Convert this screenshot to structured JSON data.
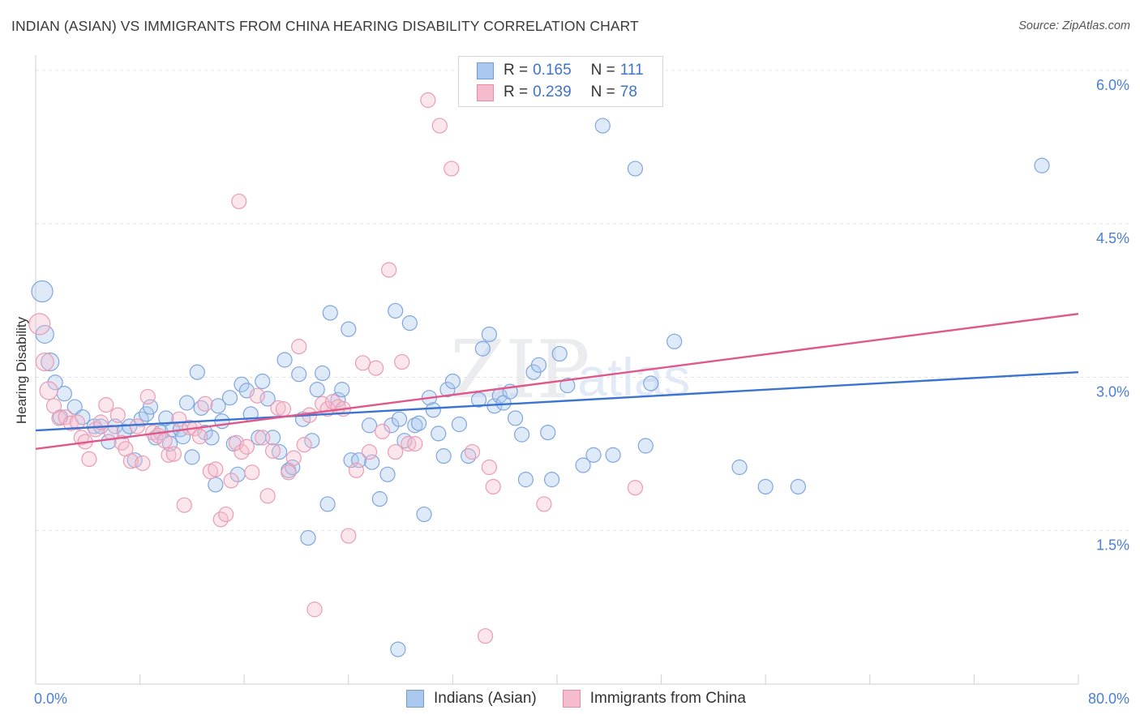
{
  "header": {
    "title": "INDIAN (ASIAN) VS IMMIGRANTS FROM CHINA HEARING DISABILITY CORRELATION CHART",
    "source_label": "Source:",
    "source_value": "ZipAtlas.com"
  },
  "watermark": {
    "zip": "ZIP",
    "atlas": "atlas"
  },
  "legend": {
    "r_key": "R =",
    "n_key": "N =",
    "series": [
      {
        "r": "0.165",
        "n": "111",
        "fill": "#aac7ee",
        "stroke": "#6f9bd8"
      },
      {
        "r": "0.239",
        "n": "78",
        "fill": "#f5bccd",
        "stroke": "#e88aa8"
      }
    ]
  },
  "bottom_legend": [
    "Indians (Asian)",
    "Immigrants from China"
  ],
  "colors": {
    "blue": "#3b73d1",
    "pink": "#e0578a",
    "axis_text": "#4a7fd4",
    "grid": "#e3e3e3"
  },
  "chart_data": {
    "type": "scatter",
    "title": "INDIAN (ASIAN) VS IMMIGRANTS FROM CHINA HEARING DISABILITY CORRELATION CHART",
    "xlabel": "",
    "ylabel": "Hearing Disability",
    "xlim": [
      0,
      80
    ],
    "ylim": [
      0,
      6.15
    ],
    "x_tick_labels": [
      "0.0%",
      "80.0%"
    ],
    "y_ticks": [
      1.5,
      3.0,
      4.5,
      6.0
    ],
    "y_tick_labels": [
      "1.5%",
      "3.0%",
      "4.5%",
      "6.0%"
    ],
    "grid": "horizontal dashed",
    "legend_position": "top-center",
    "series": [
      {
        "name": "Indians (Asian)",
        "color": "#6f9bd8",
        "trend": {
          "x": [
            0,
            80
          ],
          "y": [
            2.48,
            3.05
          ]
        },
        "points": [
          [
            0.5,
            3.84
          ],
          [
            0.7,
            3.42
          ],
          [
            1.1,
            3.15
          ],
          [
            1.5,
            2.95
          ],
          [
            2.2,
            2.84
          ],
          [
            3.0,
            2.71
          ],
          [
            3.6,
            2.61
          ],
          [
            1.9,
            2.61
          ],
          [
            4.5,
            2.52
          ],
          [
            5.0,
            2.52
          ],
          [
            5.6,
            2.37
          ],
          [
            6.1,
            2.52
          ],
          [
            6.8,
            2.47
          ],
          [
            7.2,
            2.52
          ],
          [
            7.6,
            2.19
          ],
          [
            8.1,
            2.59
          ],
          [
            8.5,
            2.64
          ],
          [
            8.8,
            2.71
          ],
          [
            9.2,
            2.41
          ],
          [
            9.6,
            2.46
          ],
          [
            10.0,
            2.6
          ],
          [
            10.5,
            2.49
          ],
          [
            10.3,
            2.35
          ],
          [
            11.1,
            2.49
          ],
          [
            11.3,
            2.42
          ],
          [
            11.6,
            2.75
          ],
          [
            12.0,
            2.22
          ],
          [
            12.4,
            3.05
          ],
          [
            12.7,
            2.7
          ],
          [
            13.0,
            2.46
          ],
          [
            13.5,
            2.41
          ],
          [
            13.8,
            1.95
          ],
          [
            14.0,
            2.72
          ],
          [
            14.3,
            2.57
          ],
          [
            14.9,
            2.8
          ],
          [
            15.2,
            2.35
          ],
          [
            15.5,
            2.05
          ],
          [
            15.8,
            2.93
          ],
          [
            16.2,
            2.87
          ],
          [
            16.5,
            2.64
          ],
          [
            17.1,
            2.41
          ],
          [
            17.4,
            2.96
          ],
          [
            17.8,
            2.79
          ],
          [
            18.2,
            2.41
          ],
          [
            18.7,
            2.27
          ],
          [
            19.1,
            3.17
          ],
          [
            19.4,
            2.09
          ],
          [
            19.7,
            2.12
          ],
          [
            20.2,
            3.03
          ],
          [
            20.5,
            2.59
          ],
          [
            20.9,
            1.43
          ],
          [
            21.2,
            2.38
          ],
          [
            21.6,
            2.88
          ],
          [
            22.0,
            3.04
          ],
          [
            22.4,
            1.76
          ],
          [
            22.6,
            3.63
          ],
          [
            23.2,
            2.78
          ],
          [
            23.5,
            2.88
          ],
          [
            24.0,
            3.47
          ],
          [
            24.2,
            2.19
          ],
          [
            24.8,
            2.19
          ],
          [
            25.6,
            2.53
          ],
          [
            25.8,
            2.17
          ],
          [
            26.4,
            1.81
          ],
          [
            27.0,
            2.05
          ],
          [
            27.3,
            2.53
          ],
          [
            27.6,
            3.65
          ],
          [
            27.9,
            2.59
          ],
          [
            28.3,
            2.38
          ],
          [
            28.7,
            3.53
          ],
          [
            29.1,
            2.53
          ],
          [
            29.4,
            2.55
          ],
          [
            29.8,
            1.66
          ],
          [
            30.2,
            2.8
          ],
          [
            30.5,
            2.68
          ],
          [
            30.9,
            2.45
          ],
          [
            31.3,
            2.23
          ],
          [
            31.6,
            2.88
          ],
          [
            32.0,
            2.96
          ],
          [
            32.5,
            2.54
          ],
          [
            33.2,
            2.23
          ],
          [
            34.0,
            2.78
          ],
          [
            34.3,
            3.28
          ],
          [
            34.8,
            3.42
          ],
          [
            35.2,
            2.72
          ],
          [
            35.6,
            2.82
          ],
          [
            35.9,
            2.75
          ],
          [
            36.4,
            2.86
          ],
          [
            36.8,
            2.6
          ],
          [
            37.3,
            2.44
          ],
          [
            37.6,
            2.0
          ],
          [
            38.2,
            3.05
          ],
          [
            38.6,
            3.12
          ],
          [
            39.3,
            2.46
          ],
          [
            39.6,
            2.0
          ],
          [
            40.2,
            3.23
          ],
          [
            40.8,
            2.92
          ],
          [
            42.0,
            2.14
          ],
          [
            42.8,
            2.24
          ],
          [
            43.5,
            5.46
          ],
          [
            44.3,
            2.24
          ],
          [
            46.0,
            5.04
          ],
          [
            46.8,
            2.33
          ],
          [
            47.2,
            2.94
          ],
          [
            49.0,
            3.35
          ],
          [
            54.0,
            2.12
          ],
          [
            56.0,
            1.93
          ],
          [
            58.5,
            1.93
          ],
          [
            27.8,
            0.34
          ],
          [
            77.2,
            5.07
          ]
        ]
      },
      {
        "name": "Immigrants from China",
        "color": "#e88aa8",
        "trend": {
          "x": [
            0,
            80
          ],
          "y": [
            2.3,
            3.62
          ]
        },
        "points": [
          [
            0.3,
            3.52
          ],
          [
            0.7,
            3.15
          ],
          [
            1.0,
            2.87
          ],
          [
            1.4,
            2.72
          ],
          [
            1.8,
            2.6
          ],
          [
            2.3,
            2.61
          ],
          [
            2.7,
            2.55
          ],
          [
            3.2,
            2.56
          ],
          [
            3.5,
            2.41
          ],
          [
            3.8,
            2.37
          ],
          [
            4.1,
            2.2
          ],
          [
            4.6,
            2.49
          ],
          [
            5.0,
            2.56
          ],
          [
            5.4,
            2.73
          ],
          [
            5.8,
            2.46
          ],
          [
            6.3,
            2.63
          ],
          [
            6.6,
            2.36
          ],
          [
            6.9,
            2.3
          ],
          [
            7.3,
            2.18
          ],
          [
            7.8,
            2.52
          ],
          [
            8.2,
            2.16
          ],
          [
            8.6,
            2.81
          ],
          [
            9.0,
            2.46
          ],
          [
            9.4,
            2.43
          ],
          [
            9.9,
            2.38
          ],
          [
            10.2,
            2.24
          ],
          [
            10.6,
            2.25
          ],
          [
            11.0,
            2.59
          ],
          [
            11.4,
            1.75
          ],
          [
            11.8,
            2.51
          ],
          [
            12.2,
            2.5
          ],
          [
            12.6,
            2.42
          ],
          [
            13.0,
            2.74
          ],
          [
            13.4,
            2.08
          ],
          [
            13.8,
            2.1
          ],
          [
            14.2,
            1.61
          ],
          [
            14.6,
            1.66
          ],
          [
            15.0,
            1.99
          ],
          [
            15.4,
            2.36
          ],
          [
            15.8,
            2.27
          ],
          [
            16.2,
            2.32
          ],
          [
            16.6,
            2.07
          ],
          [
            17.0,
            2.82
          ],
          [
            17.4,
            2.41
          ],
          [
            17.8,
            1.84
          ],
          [
            18.2,
            2.28
          ],
          [
            18.6,
            2.7
          ],
          [
            19.0,
            2.69
          ],
          [
            19.4,
            2.07
          ],
          [
            19.8,
            2.21
          ],
          [
            20.2,
            3.3
          ],
          [
            20.6,
            2.34
          ],
          [
            21.0,
            2.63
          ],
          [
            21.4,
            0.73
          ],
          [
            22.0,
            2.74
          ],
          [
            22.4,
            2.69
          ],
          [
            22.8,
            2.76
          ],
          [
            23.2,
            2.71
          ],
          [
            23.6,
            2.69
          ],
          [
            24.0,
            1.45
          ],
          [
            24.6,
            2.09
          ],
          [
            25.1,
            3.14
          ],
          [
            25.6,
            2.27
          ],
          [
            26.1,
            3.09
          ],
          [
            26.6,
            2.47
          ],
          [
            27.1,
            4.05
          ],
          [
            27.6,
            2.27
          ],
          [
            28.1,
            3.15
          ],
          [
            28.6,
            2.35
          ],
          [
            29.1,
            2.35
          ],
          [
            30.1,
            5.71
          ],
          [
            31.0,
            5.46
          ],
          [
            31.9,
            5.04
          ],
          [
            33.5,
            2.27
          ],
          [
            34.5,
            0.47
          ],
          [
            35.1,
            1.93
          ],
          [
            39.0,
            1.76
          ],
          [
            46.0,
            1.92
          ],
          [
            15.6,
            4.72
          ],
          [
            34.8,
            2.12
          ]
        ]
      }
    ]
  }
}
